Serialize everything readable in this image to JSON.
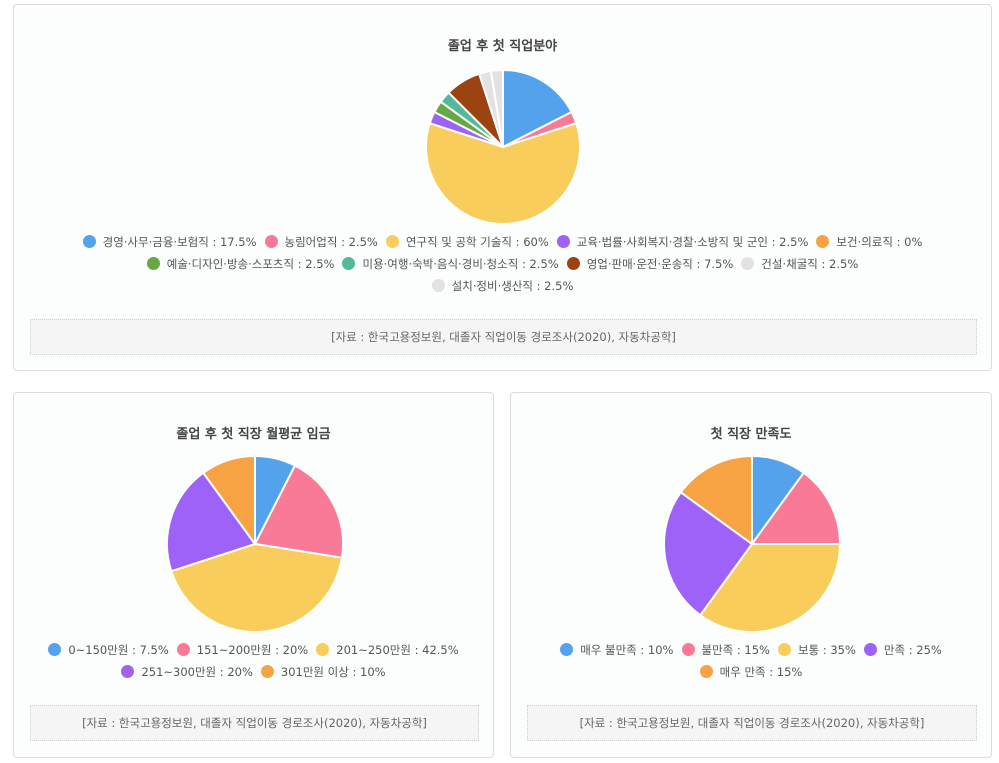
{
  "chart_data": [
    {
      "type": "pie",
      "title": "졸업 후 첫 직업분야",
      "categories": [
        "경영·사무·금융·보험직",
        "농림어업직",
        "연구직 및 공학 기술직",
        "교육·법률·사회복지·경찰·소방직 및 군인",
        "보건·의료직",
        "예술·디자인·방송·스포츠직",
        "미용·여행·숙박·음식·경비·청소직",
        "영업·판매·운전·운송직",
        "건설·채굴직",
        "설치·정비·생산직"
      ],
      "values": [
        17.5,
        2.5,
        60,
        2.5,
        0,
        2.5,
        2.5,
        7.5,
        2.5,
        2.5
      ],
      "legend_labels": [
        "경영·사무·금융·보험직 : 17.5%",
        "농림어업직 : 2.5%",
        "연구직 및 공학 기술직 : 60%",
        "교육·법률·사회복지·경찰·소방직 및 군인 : 2.5%",
        "보건·의료직 : 0%",
        "예술·디자인·방송·스포츠직 : 2.5%",
        "미용·여행·숙박·음식·경비·청소직 : 2.5%",
        "영업·판매·운전·운송직 : 7.5%",
        "건설·채굴직 : 2.5%",
        "설치·정비·생산직 : 2.5%"
      ],
      "colors": [
        "#55a2ec",
        "#f97a96",
        "#f8cd5b",
        "#9e62f8",
        "#f7a344",
        "#66a944",
        "#52b99b",
        "#9b4311",
        "#e2e2e2",
        "#e2e2e2"
      ],
      "legend_placement": "bottom",
      "source": "[자료 : 한국고용정보원, 대졸자 직업이동 경로조사(2020), 자동차공학]"
    },
    {
      "type": "pie",
      "title": "졸업 후 첫 직장 월평균 임금",
      "categories": [
        "0~150만원",
        "151~200만원",
        "201~250만원",
        "251~300만원",
        "301만원 이상"
      ],
      "values": [
        7.5,
        20,
        42.5,
        20,
        10
      ],
      "legend_labels": [
        "0~150만원 : 7.5%",
        "151~200만원 : 20%",
        "201~250만원 : 42.5%",
        "251~300만원 : 20%",
        "301만원 이상 : 10%"
      ],
      "colors": [
        "#55a2ec",
        "#f97a96",
        "#f8cd5b",
        "#9e62f8",
        "#f7a344"
      ],
      "legend_placement": "bottom",
      "source": "[자료 : 한국고용정보원, 대졸자 직업이동 경로조사(2020), 자동차공학]"
    },
    {
      "type": "pie",
      "title": "첫 직장 만족도",
      "categories": [
        "매우 불만족",
        "불만족",
        "보통",
        "만족",
        "매우 만족"
      ],
      "values": [
        10,
        15,
        35,
        25,
        15
      ],
      "legend_labels": [
        "매우 불만족 : 10%",
        "불만족 : 15%",
        "보통 : 35%",
        "만족 : 25%",
        "매우 만족 : 15%"
      ],
      "colors": [
        "#55a2ec",
        "#f97a96",
        "#f8cd5b",
        "#9e62f8",
        "#f7a344"
      ],
      "legend_placement": "bottom",
      "source": "[자료 : 한국고용정보원, 대졸자 직업이동 경로조사(2020), 자동차공학]"
    }
  ]
}
